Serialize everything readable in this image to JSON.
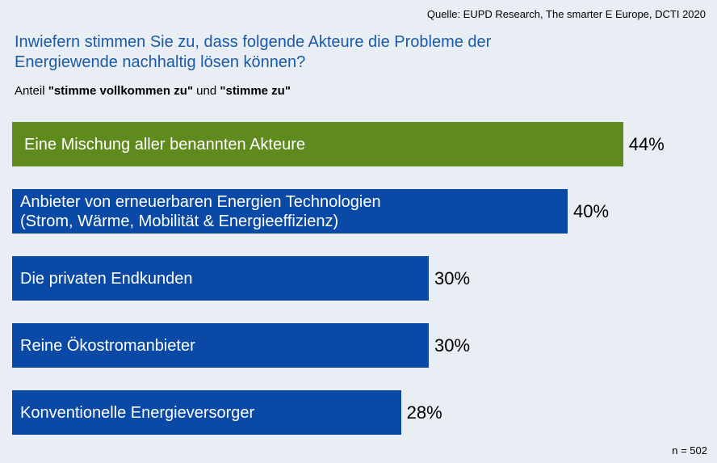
{
  "source": "Quelle: EUPD Research, The smarter E Europe, DCTI 2020",
  "n_label": "n = 502",
  "subtitle_prefix": "Anteil ",
  "subtitle_bold1": "\"stimme vollkommen zu\"",
  "subtitle_mid": " und ",
  "subtitle_bold2": "\"stimme zu\"",
  "colors": {
    "highlight": "#5f8a1e",
    "default": "#0a4aa6"
  },
  "chart_data": {
    "type": "bar",
    "orientation": "horizontal",
    "title": "Inwiefern stimmen Sie zu, dass folgende Akteure die Probleme der Energiewende nachhaltig lösen können?",
    "categories": [
      "Eine Mischung aller benannten Akteure",
      "Anbieter von erneuerbaren Energien Technologien\n(Strom, Wärme, Mobilität & Energieeffizienz)",
      "Die privaten Endkunden",
      "Reine Ökostromanbieter",
      "Konventionelle Energieversorger"
    ],
    "values": [
      44,
      40,
      30,
      30,
      28
    ],
    "value_labels": [
      "44%",
      "40%",
      "30%",
      "30%",
      "28%"
    ],
    "highlight_index": 0,
    "xlim": [
      0,
      100
    ]
  }
}
